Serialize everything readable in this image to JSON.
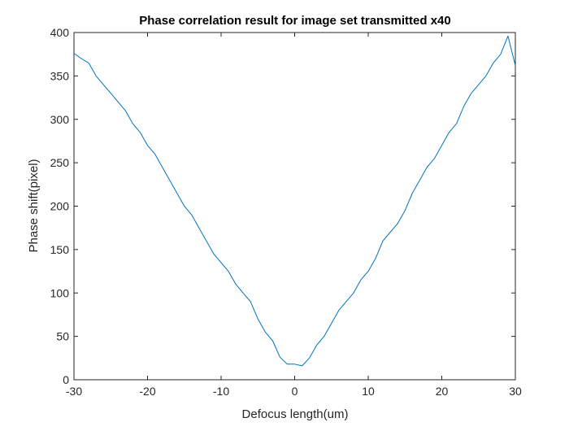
{
  "chart_data": {
    "type": "line",
    "title": "Phase correlation result for image set transmitted x40",
    "xlabel": "Defocus length(um)",
    "ylabel": "Phase shift(pixel)",
    "xlim": [
      -30,
      30
    ],
    "ylim": [
      0,
      400
    ],
    "xticks": [
      -30,
      -20,
      -10,
      0,
      10,
      20,
      30
    ],
    "yticks": [
      0,
      50,
      100,
      150,
      200,
      250,
      300,
      350,
      400
    ],
    "grid": false,
    "legend": "none",
    "line_color": "#0072BD",
    "series": [
      {
        "x": [
          -30,
          -29,
          -28,
          -27,
          -26,
          -25,
          -24,
          -23,
          -22,
          -21,
          -20,
          -19,
          -18,
          -17,
          -16,
          -15,
          -14,
          -13,
          -12,
          -11,
          -10,
          -9,
          -8,
          -7,
          -6,
          -5,
          -4,
          -3,
          -2,
          -1,
          0,
          1,
          2,
          3,
          4,
          5,
          6,
          7,
          8,
          9,
          10,
          11,
          12,
          13,
          14,
          15,
          16,
          17,
          18,
          19,
          20,
          21,
          22,
          23,
          24,
          25,
          26,
          27,
          28,
          29,
          30
        ],
        "y": [
          376,
          370,
          365,
          350,
          340,
          330,
          320,
          310,
          295,
          285,
          270,
          260,
          245,
          230,
          215,
          200,
          190,
          175,
          160,
          145,
          135,
          125,
          110,
          100,
          90,
          70,
          55,
          45,
          26,
          18,
          18,
          16,
          25,
          40,
          50,
          65,
          80,
          90,
          100,
          115,
          125,
          140,
          160,
          170,
          180,
          195,
          215,
          230,
          245,
          255,
          270,
          285,
          295,
          315,
          330,
          340,
          350,
          365,
          375,
          396,
          362
        ]
      }
    ]
  }
}
